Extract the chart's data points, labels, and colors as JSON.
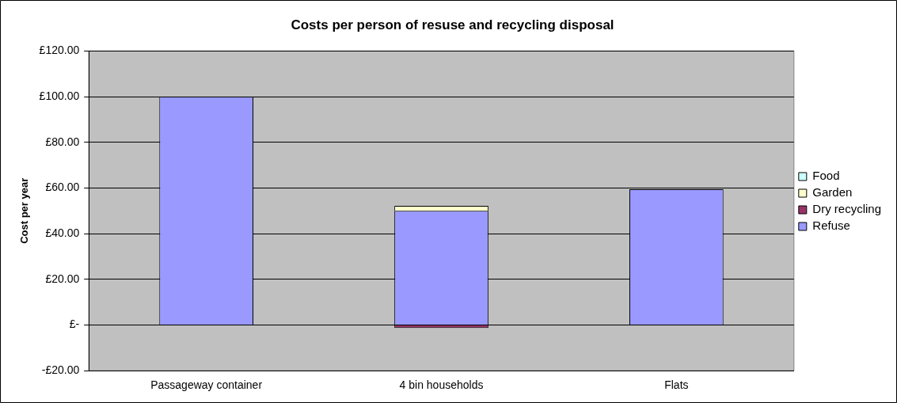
{
  "chart_data": {
    "type": "bar",
    "stacked": true,
    "title": "Costs per person of resuse and recycling disposal",
    "ylabel": "Cost per year",
    "categories": [
      "Passageway container",
      "4 bin households",
      "Flats"
    ],
    "series": [
      {
        "name": "Refuse",
        "color": "#9999ff",
        "values": [
          100,
          50,
          59.5
        ]
      },
      {
        "name": "Dry recycling",
        "color": "#993366",
        "values": [
          null,
          -1.3,
          null
        ]
      },
      {
        "name": "Garden",
        "color": "#ffffcc",
        "values": [
          0,
          2.2,
          0
        ]
      },
      {
        "name": "Food",
        "color": "#ccffff",
        "values": [
          null,
          null,
          null
        ]
      }
    ],
    "ylim": [
      -20,
      120
    ],
    "yticks": [
      {
        "value": -20,
        "label": "-£20.00"
      },
      {
        "value": 0,
        "label": "£-"
      },
      {
        "value": 20,
        "label": "£20.00"
      },
      {
        "value": 40,
        "label": "£40.00"
      },
      {
        "value": 60,
        "label": "£60.00"
      },
      {
        "value": 80,
        "label": "£80.00"
      },
      {
        "value": 100,
        "label": "£100.00"
      },
      {
        "value": 120,
        "label": "£120.00"
      }
    ],
    "grid": "y",
    "legend": "right"
  }
}
